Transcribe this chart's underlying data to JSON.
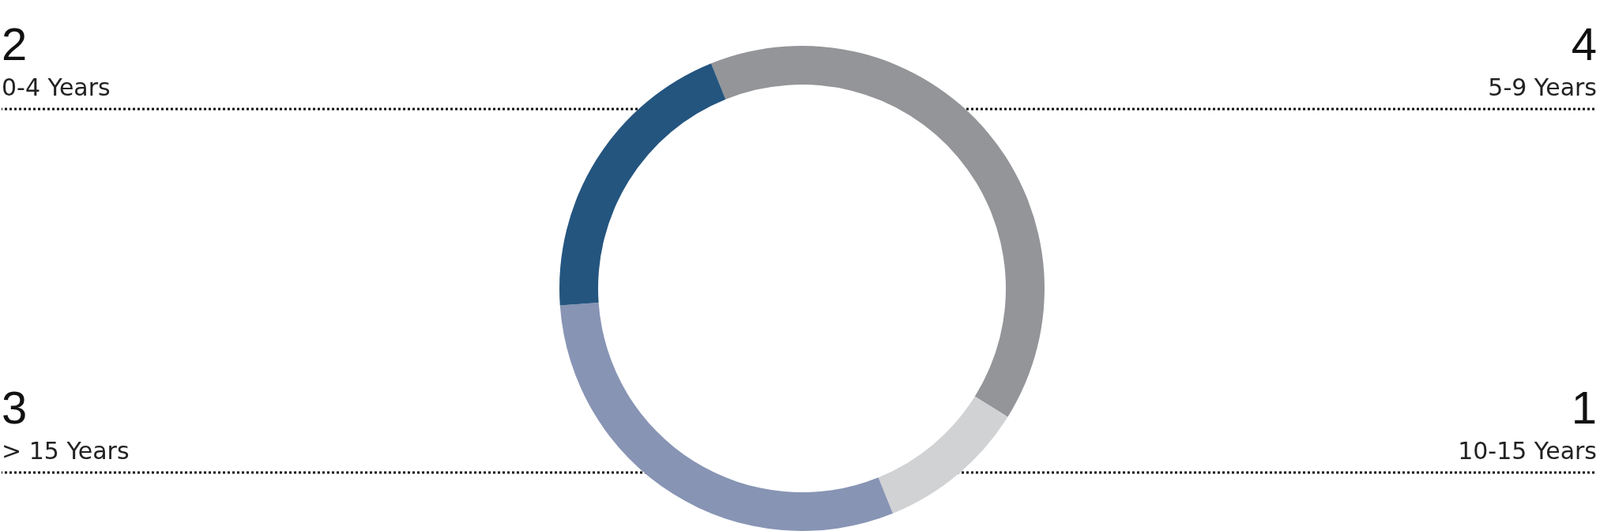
{
  "chart_data": {
    "type": "donut",
    "categories": [
      "5-9 Years",
      "10-15 Years",
      "> 15 Years",
      "0-4 Years"
    ],
    "values": [
      4,
      1,
      3,
      2
    ],
    "colors": [
      "#939598",
      "#d1d2d4",
      "#8794b4",
      "#24557f"
    ],
    "data_labels": true
  }
}
